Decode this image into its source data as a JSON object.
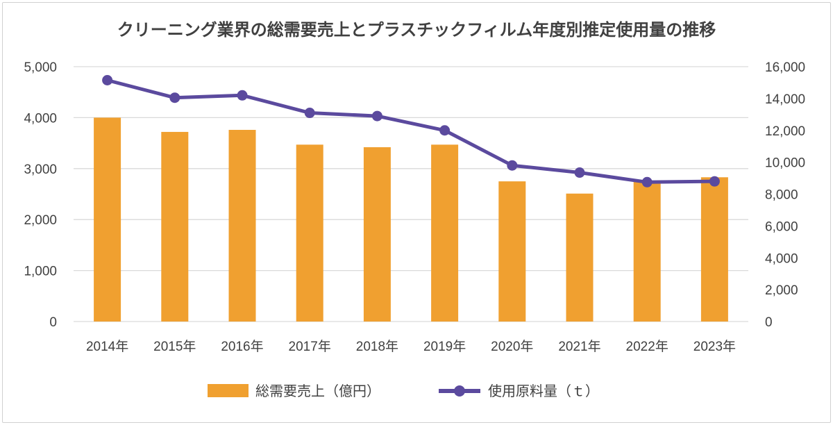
{
  "chart_data": {
    "type": "bar+line",
    "title": "クリーニング業界の総需要売上とプラスチックフィルム年度別推定使用量の推移",
    "categories": [
      "2014年",
      "2015年",
      "2016年",
      "2017年",
      "2018年",
      "2019年",
      "2020年",
      "2021年",
      "2022年",
      "2023年"
    ],
    "series": [
      {
        "name": "総需要売上（億円）",
        "type": "bar",
        "axis": "left",
        "color": "#F0A030",
        "values": [
          4000,
          3720,
          3760,
          3470,
          3420,
          3470,
          2750,
          2510,
          2760,
          2830
        ]
      },
      {
        "name": "使用原料量（ｔ）",
        "type": "line",
        "axis": "right",
        "color": "#5B4A9E",
        "values": [
          15150,
          14050,
          14200,
          13100,
          12900,
          12000,
          9800,
          9350,
          8750,
          8800
        ]
      }
    ],
    "y_left": {
      "min": 0,
      "max": 5000,
      "ticks": [
        "0",
        "1,000",
        "2,000",
        "3,000",
        "4,000",
        "5,000"
      ],
      "tick_values": [
        0,
        1000,
        2000,
        3000,
        4000,
        5000
      ]
    },
    "y_right": {
      "min": 0,
      "max": 16000,
      "ticks": [
        "0",
        "2,000",
        "4,000",
        "6,000",
        "8,000",
        "10,000",
        "12,000",
        "14,000",
        "16,000"
      ],
      "tick_values": [
        0,
        2000,
        4000,
        6000,
        8000,
        10000,
        12000,
        14000,
        16000
      ]
    },
    "grid": true,
    "legend_position": "bottom",
    "gridline_color": "#d9d9d9"
  }
}
